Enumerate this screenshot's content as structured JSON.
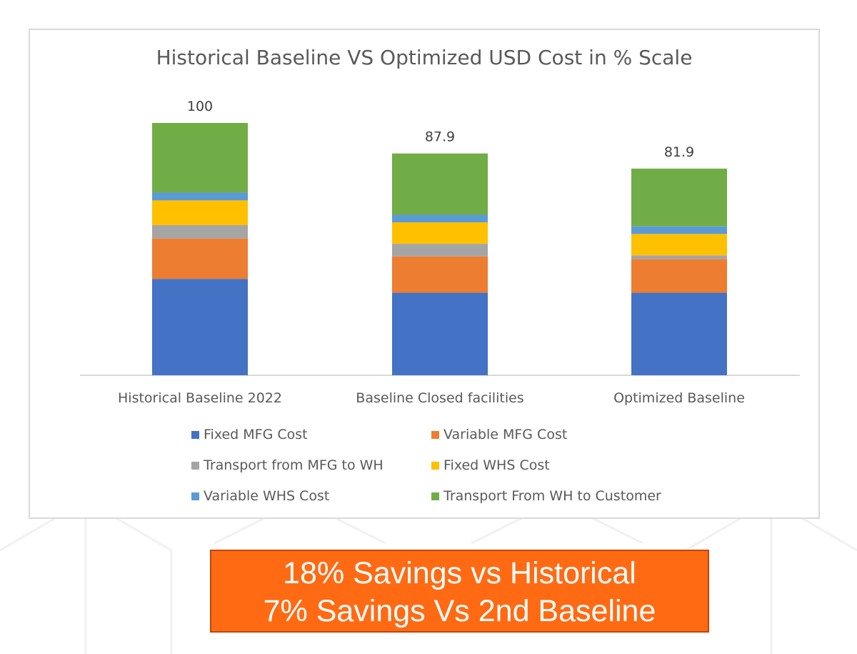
{
  "chart_data": {
    "type": "bar",
    "stacked": true,
    "title": "Historical Baseline VS Optimized USD Cost in % Scale",
    "categories": [
      "Historical Baseline 2022",
      "Baseline Closed facilities",
      "Optimized Baseline"
    ],
    "totals": [
      100,
      87.9,
      81.9
    ],
    "total_labels": [
      "100",
      "87.9",
      "81.9"
    ],
    "ylim": [
      0,
      100
    ],
    "series": [
      {
        "name": "Fixed MFG Cost",
        "color": "#4472c4",
        "values": [
          38.2,
          32.7,
          32.7
        ]
      },
      {
        "name": "Variable MFG Cost",
        "color": "#ed7d31",
        "values": [
          16.0,
          14.4,
          13.3
        ]
      },
      {
        "name": "Transport from MFG to WH",
        "color": "#a5a5a5",
        "values": [
          5.3,
          5.0,
          1.5
        ]
      },
      {
        "name": "Fixed WHS Cost",
        "color": "#ffc000",
        "values": [
          9.8,
          8.5,
          8.5
        ]
      },
      {
        "name": "Variable WHS Cost",
        "color": "#5b9bd5",
        "values": [
          3.1,
          3.0,
          3.0
        ]
      },
      {
        "name": "Transport From WH to Customer",
        "color": "#70ad47",
        "values": [
          27.6,
          24.3,
          22.9
        ]
      }
    ],
    "grid": false,
    "legend_position": "bottom"
  },
  "callout": {
    "line1": "18% Savings vs Historical",
    "line2": "7% Savings Vs 2nd Baseline"
  }
}
